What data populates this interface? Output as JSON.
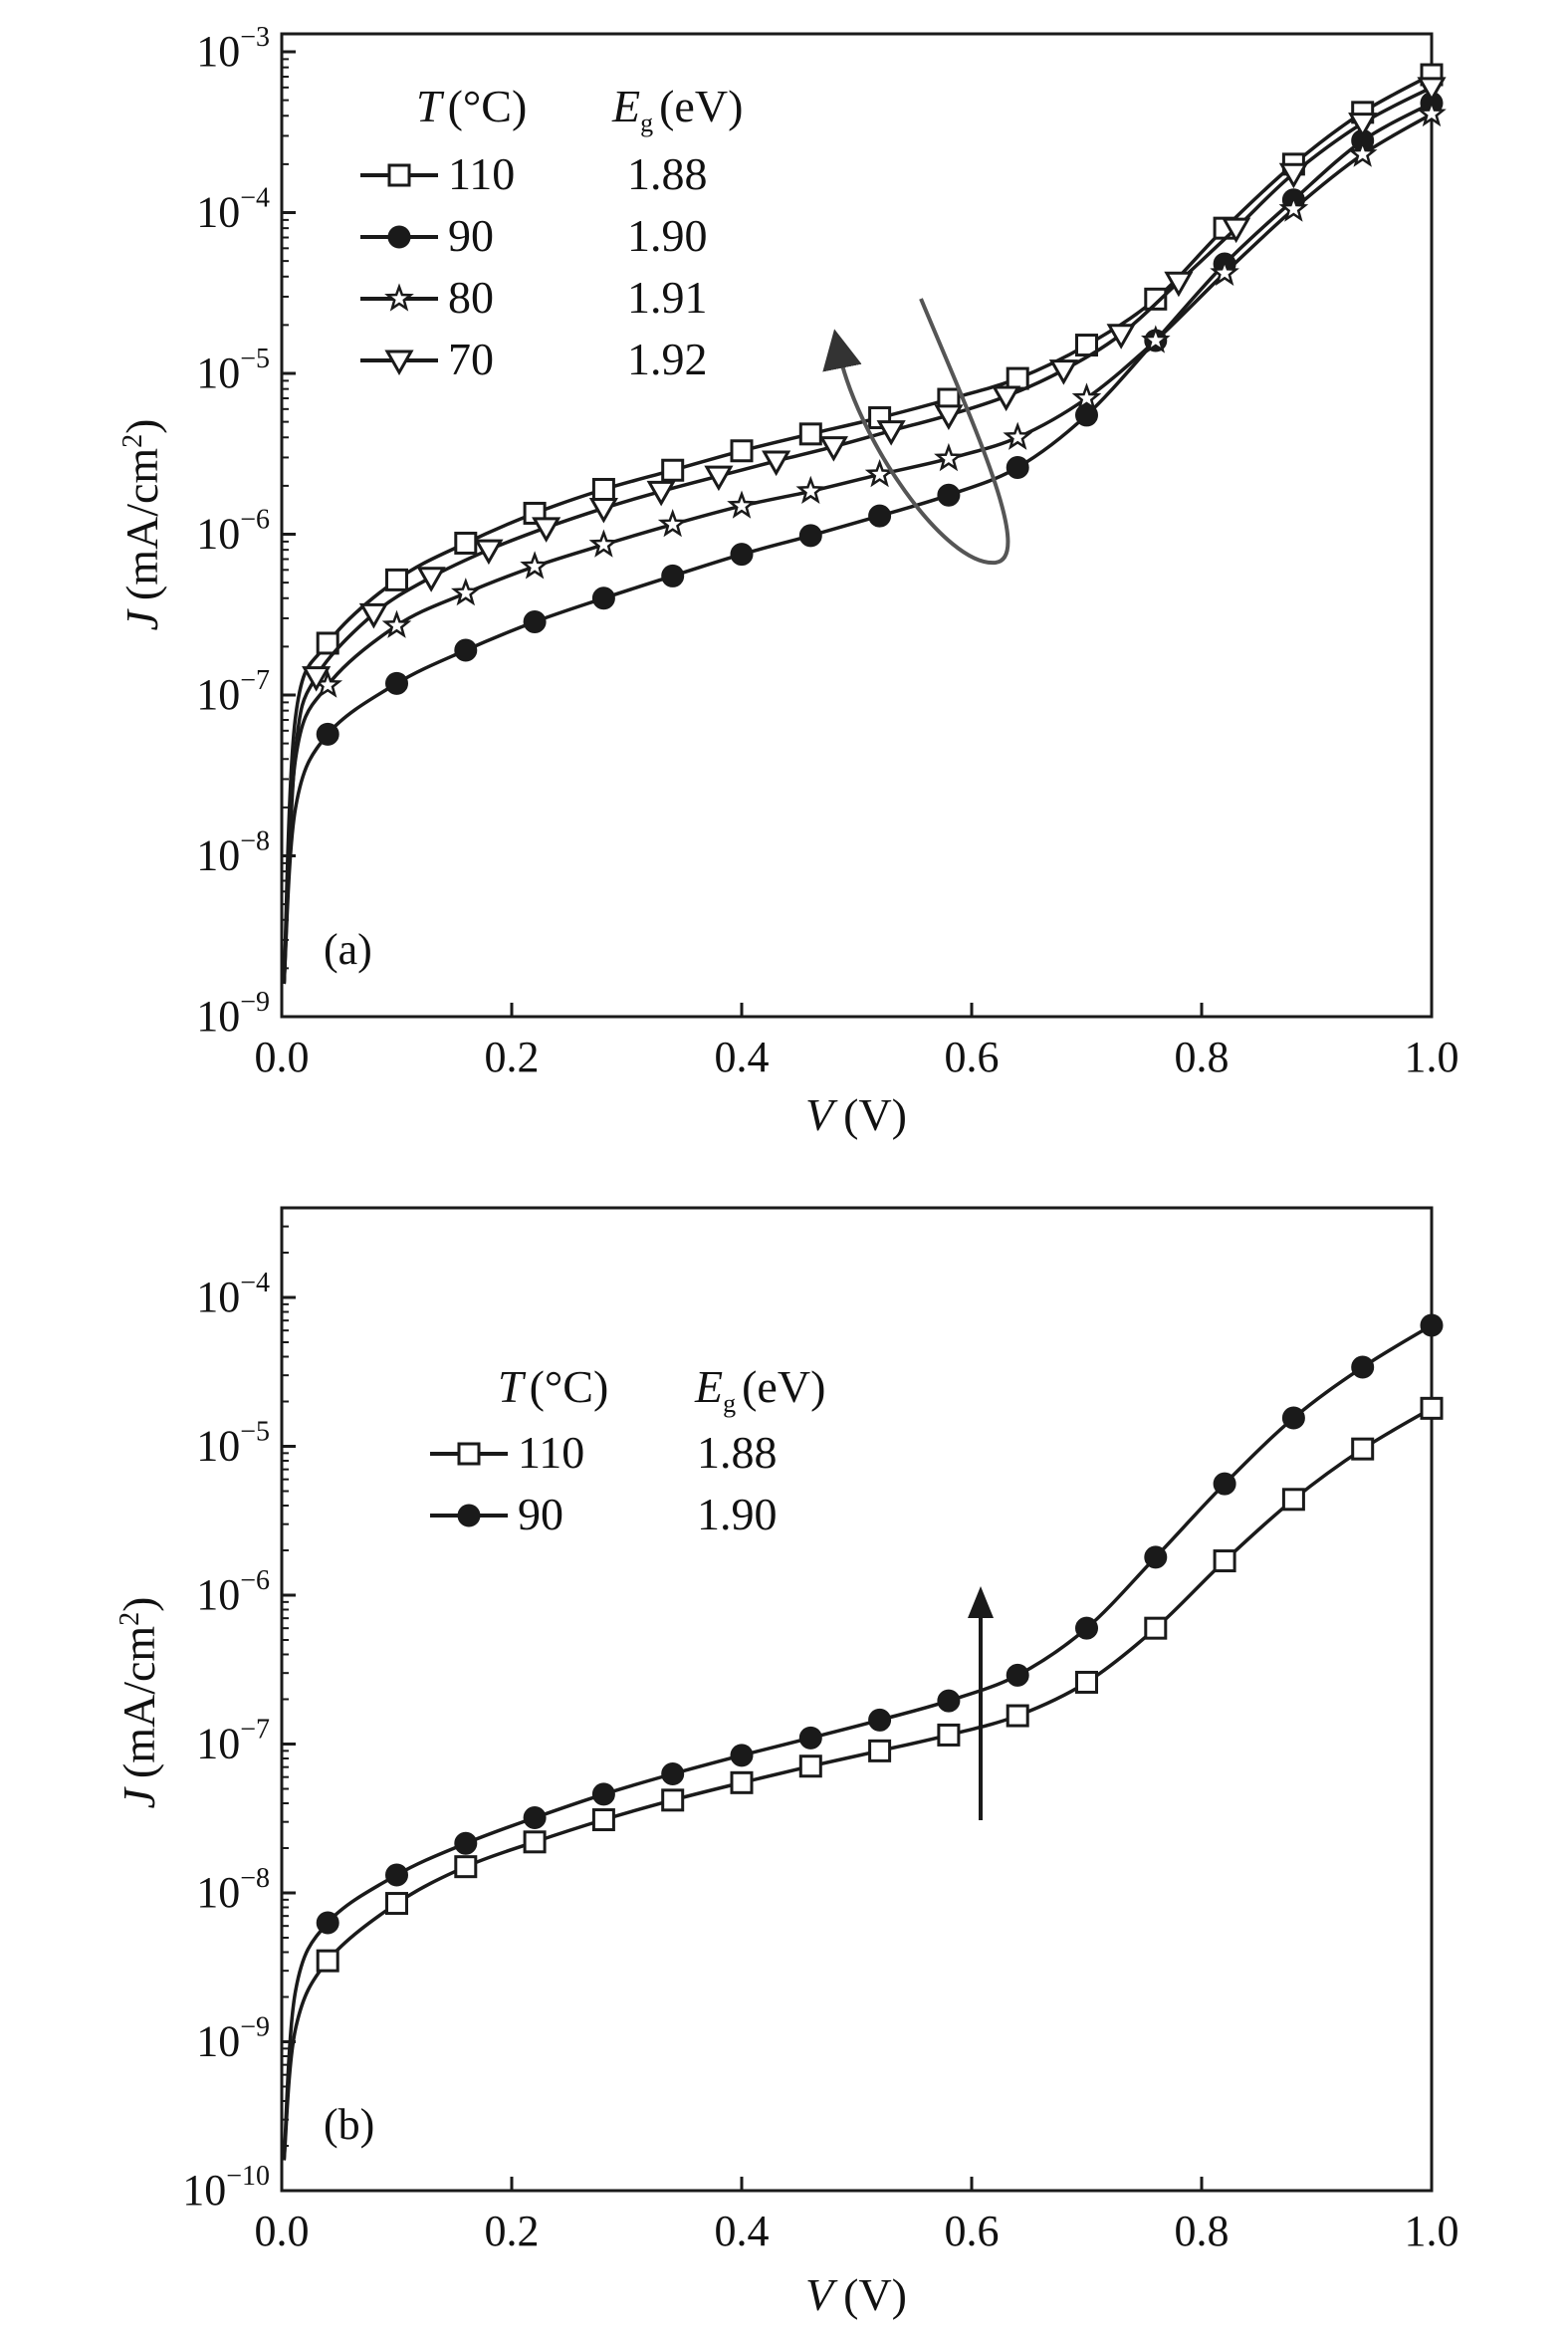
{
  "colors": {
    "ink": "#1a1a1a",
    "arrow_a": "#555555",
    "background": "#ffffff"
  },
  "chart_data": [
    {
      "type": "line",
      "panel_label": "(a)",
      "xlabel": "V (V)",
      "ylabel": "J (mA/cm²)",
      "ylabel_var": "J",
      "ylabel_unit": "(mA/cm",
      "ylabel_sup": "2",
      "ylabel_close": ")",
      "xlabel_var": "V",
      "xlabel_unit": "(V)",
      "x_scale": "linear",
      "y_scale": "log",
      "xlim": [
        0,
        1.0
      ],
      "ylim": [
        1e-09,
        0.001
      ],
      "x_ticks": [
        "0.0",
        "0.2",
        "0.4",
        "0.6",
        "0.8",
        "1.0"
      ],
      "y_tick_exponents": [
        -9,
        -8,
        -7,
        -6,
        -5,
        -4,
        -3
      ],
      "legend": {
        "placement": "top-left",
        "header_T_var": "T",
        "header_T_unit": "(°C)",
        "header_Eg_var": "E",
        "header_Eg_sub": "g",
        "header_Eg_unit": "(eV)"
      },
      "series": [
        {
          "name": "110",
          "Eg": "1.88",
          "marker": "open-square",
          "x": [
            0.04,
            0.1,
            0.16,
            0.22,
            0.28,
            0.34,
            0.4,
            0.46,
            0.52,
            0.58,
            0.64,
            0.7,
            0.76,
            0.82,
            0.88,
            0.94,
            1.0
          ],
          "y": [
            2.1e-07,
            5.2e-07,
            8.8e-07,
            1.35e-06,
            1.9e-06,
            2.5e-06,
            3.3e-06,
            4.2e-06,
            5.3e-06,
            6.9e-06,
            9.3e-06,
            1.5e-05,
            2.9e-05,
            8e-05,
            0.0002,
            0.00042,
            0.00072
          ]
        },
        {
          "name": "90",
          "Eg": "1.90",
          "marker": "filled-circle",
          "x": [
            0.04,
            0.1,
            0.16,
            0.22,
            0.28,
            0.34,
            0.4,
            0.46,
            0.52,
            0.58,
            0.64,
            0.7,
            0.76,
            0.82,
            0.88,
            0.94,
            1.0
          ],
          "y": [
            5.7e-08,
            1.18e-07,
            1.9e-07,
            2.85e-07,
            4e-07,
            5.5e-07,
            7.5e-07,
            9.8e-07,
            1.3e-06,
            1.75e-06,
            2.6e-06,
            5.5e-06,
            1.6e-05,
            4.8e-05,
            0.00012,
            0.00028,
            0.00048
          ]
        },
        {
          "name": "80",
          "Eg": "1.91",
          "marker": "star",
          "x": [
            0.04,
            0.1,
            0.16,
            0.22,
            0.28,
            0.34,
            0.4,
            0.46,
            0.52,
            0.58,
            0.64,
            0.7,
            0.76,
            0.82,
            0.88,
            0.94,
            1.0
          ],
          "y": [
            1.15e-07,
            2.7e-07,
            4.3e-07,
            6.3e-07,
            8.6e-07,
            1.15e-06,
            1.5e-06,
            1.85e-06,
            2.35e-06,
            2.95e-06,
            4e-06,
            7e-06,
            1.6e-05,
            4.2e-05,
            0.000105,
            0.00023,
            0.00041
          ]
        },
        {
          "name": "70",
          "Eg": "1.92",
          "marker": "open-down-triangle",
          "x": [
            0.03,
            0.08,
            0.13,
            0.18,
            0.23,
            0.28,
            0.33,
            0.38,
            0.43,
            0.48,
            0.53,
            0.58,
            0.63,
            0.68,
            0.73,
            0.78,
            0.83,
            0.88,
            0.94,
            1.0
          ],
          "y": [
            1.3e-07,
            3.2e-07,
            5.4e-07,
            8e-07,
            1.1e-06,
            1.45e-06,
            1.85e-06,
            2.3e-06,
            2.85e-06,
            3.5e-06,
            4.4e-06,
            5.5e-06,
            7.2e-06,
            1.05e-05,
            1.75e-05,
            3.7e-05,
            8e-05,
            0.000175,
            0.00036,
            0.0006
          ]
        }
      ]
    },
    {
      "type": "line",
      "panel_label": "(b)",
      "xlabel": "V (V)",
      "ylabel": "J (mA/cm²)",
      "ylabel_var": "J",
      "ylabel_unit": "(mA/cm",
      "ylabel_sup": "2",
      "ylabel_close": ")",
      "xlabel_var": "V",
      "xlabel_unit": "(V)",
      "x_scale": "linear",
      "y_scale": "log",
      "xlim": [
        0,
        1.0
      ],
      "ylim": [
        1e-10,
        0.0004
      ],
      "x_ticks": [
        "0.0",
        "0.2",
        "0.4",
        "0.6",
        "0.8",
        "1.0"
      ],
      "y_tick_exponents": [
        -10,
        -9,
        -8,
        -7,
        -6,
        -5,
        -4
      ],
      "legend": {
        "placement": "top-left",
        "header_T_var": "T",
        "header_T_unit": "(°C)",
        "header_Eg_var": "E",
        "header_Eg_sub": "g",
        "header_Eg_unit": "(eV)"
      },
      "series": [
        {
          "name": "110",
          "Eg": "1.88",
          "marker": "open-square",
          "x": [
            0.04,
            0.1,
            0.16,
            0.22,
            0.28,
            0.34,
            0.4,
            0.46,
            0.52,
            0.58,
            0.64,
            0.7,
            0.76,
            0.82,
            0.88,
            0.94,
            1.0
          ],
          "y": [
            3.5e-09,
            8.5e-09,
            1.5e-08,
            2.2e-08,
            3.1e-08,
            4.2e-08,
            5.5e-08,
            7.1e-08,
            9e-08,
            1.15e-07,
            1.55e-07,
            2.6e-07,
            6e-07,
            1.7e-06,
            4.4e-06,
            9.6e-06,
            1.8e-05
          ]
        },
        {
          "name": "90",
          "Eg": "1.90",
          "marker": "filled-circle",
          "x": [
            0.04,
            0.1,
            0.16,
            0.22,
            0.28,
            0.34,
            0.4,
            0.46,
            0.52,
            0.58,
            0.64,
            0.7,
            0.76,
            0.82,
            0.88,
            0.94,
            1.0
          ],
          "y": [
            6.3e-09,
            1.32e-08,
            2.15e-08,
            3.2e-08,
            4.6e-08,
            6.3e-08,
            8.4e-08,
            1.1e-07,
            1.45e-07,
            1.95e-07,
            2.9e-07,
            6e-07,
            1.8e-06,
            5.6e-06,
            1.55e-05,
            3.4e-05,
            6.5e-05
          ]
        }
      ]
    }
  ]
}
